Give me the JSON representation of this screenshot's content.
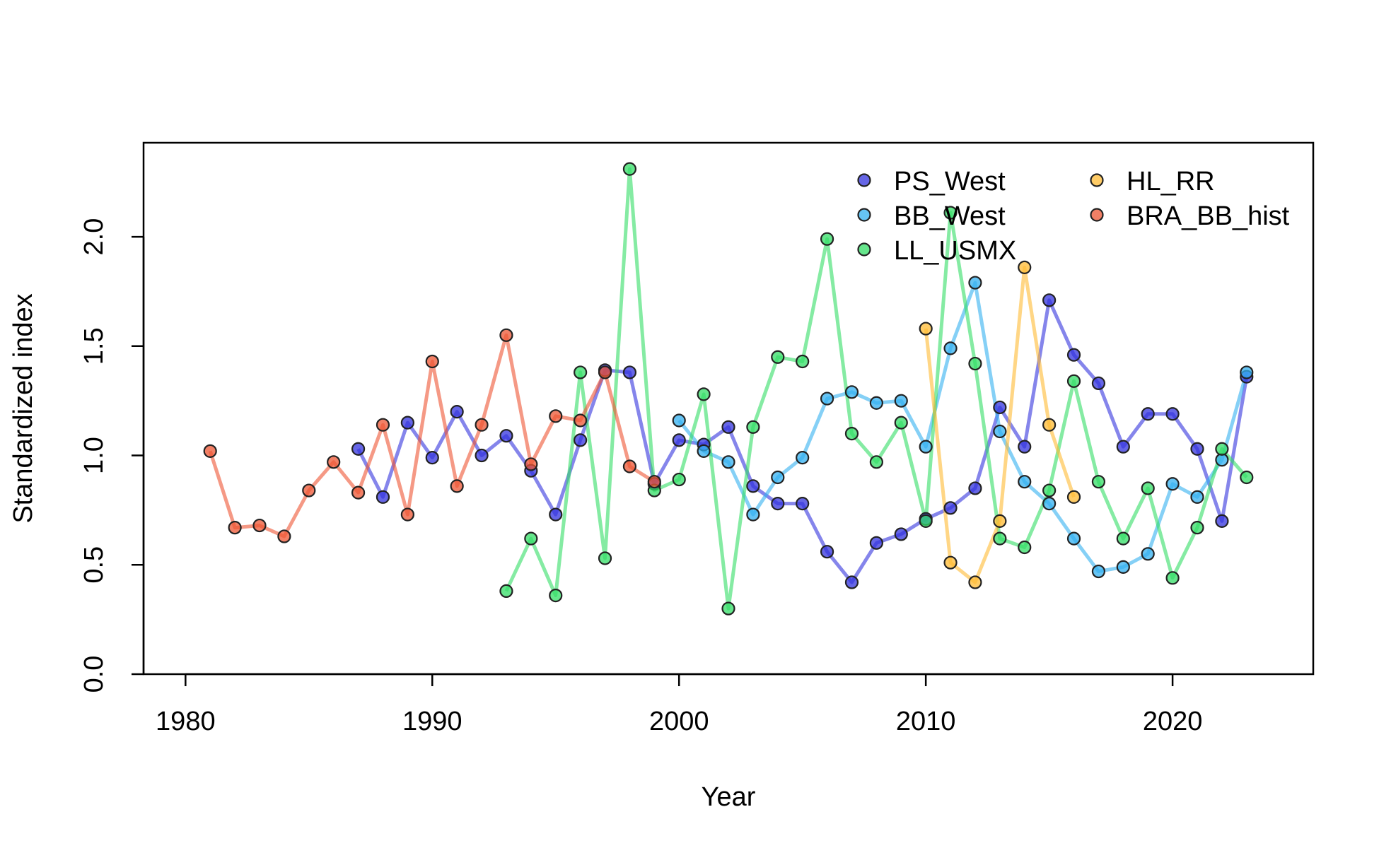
{
  "chart_data": {
    "type": "line",
    "title": "",
    "xlabel": "Year",
    "ylabel": "Standardized index",
    "xlim": [
      1978.3,
      2025.7
    ],
    "ylim": [
      0,
      2.43
    ],
    "xticks": [
      1980,
      1990,
      2000,
      2010,
      2020
    ],
    "xtick_labels": [
      "1980",
      "1990",
      "2000",
      "2010",
      "2020"
    ],
    "yticks": [
      0,
      0.5,
      1,
      1.5,
      2
    ],
    "ytick_labels": [
      "0.0",
      "0.5",
      "1.0",
      "1.5",
      "2.0"
    ],
    "grid": false,
    "legend_position": "top-right",
    "legend_columns": 2,
    "series": [
      {
        "name": "PS_West",
        "color": "#3333dd",
        "x": [
          1987,
          1988,
          1989,
          1990,
          1991,
          1992,
          1993,
          1994,
          1995,
          1996,
          1997,
          1998,
          1999,
          2000,
          2001,
          2002,
          2003,
          2004,
          2005,
          2006,
          2007,
          2008,
          2009,
          2010,
          2011,
          2012,
          2013,
          2014,
          2015,
          2016,
          2017,
          2018,
          2019,
          2020,
          2021,
          2022,
          2023
        ],
        "values": [
          1.03,
          0.81,
          1.15,
          0.99,
          1.2,
          1.0,
          1.09,
          0.93,
          0.73,
          1.07,
          1.39,
          1.38,
          0.87,
          1.07,
          1.05,
          1.13,
          0.86,
          0.78,
          0.78,
          0.56,
          0.42,
          0.6,
          0.64,
          0.71,
          0.76,
          0.85,
          1.22,
          1.04,
          1.71,
          1.46,
          1.33,
          1.04,
          1.19,
          1.19,
          1.03,
          0.7,
          1.36
        ]
      },
      {
        "name": "BB_West",
        "color": "#33b0f0",
        "x": [
          2000,
          2001,
          2002,
          2003,
          2004,
          2005,
          2006,
          2007,
          2008,
          2009,
          2010,
          2011,
          2012,
          2013,
          2014,
          2015,
          2016,
          2017,
          2018,
          2019,
          2020,
          2021,
          2022,
          2023
        ],
        "values": [
          1.16,
          1.02,
          0.97,
          0.73,
          0.9,
          0.99,
          1.26,
          1.29,
          1.24,
          1.25,
          1.04,
          1.49,
          1.79,
          1.11,
          0.88,
          0.78,
          0.62,
          0.47,
          0.49,
          0.55,
          0.87,
          0.81,
          0.98,
          1.38
        ]
      },
      {
        "name": "LL_USMX",
        "color": "#33dd66",
        "x": [
          1993,
          1994,
          1995,
          1996,
          1997,
          1998,
          1999,
          2000,
          2001,
          2002,
          2003,
          2004,
          2005,
          2006,
          2007,
          2008,
          2009,
          2010,
          2011,
          2012,
          2013,
          2014,
          2015,
          2016,
          2017,
          2018,
          2019,
          2020,
          2021,
          2022,
          2023
        ],
        "values": [
          0.38,
          0.62,
          0.36,
          1.38,
          0.53,
          2.31,
          0.84,
          0.89,
          1.28,
          0.3,
          1.13,
          1.45,
          1.43,
          1.99,
          1.1,
          0.97,
          1.15,
          0.7,
          2.11,
          1.42,
          0.62,
          0.58,
          0.84,
          1.34,
          0.88,
          0.62,
          0.85,
          0.44,
          0.67,
          1.03,
          0.9
        ]
      },
      {
        "name": "HL_RR",
        "color": "#ffbb33",
        "x": [
          2010,
          2011,
          2012,
          2013,
          2014,
          2015,
          2016
        ],
        "values": [
          1.58,
          0.51,
          0.42,
          0.7,
          1.86,
          1.14,
          0.81
        ]
      },
      {
        "name": "BRA_BB_hist",
        "color": "#ee5533",
        "x": [
          1981,
          1982,
          1983,
          1984,
          1985,
          1986,
          1987,
          1988,
          1989,
          1990,
          1991,
          1992,
          1993,
          1994,
          1995,
          1996,
          1997,
          1998,
          1999
        ],
        "values": [
          1.02,
          0.67,
          0.68,
          0.63,
          0.84,
          0.97,
          0.83,
          1.14,
          0.73,
          1.43,
          0.86,
          1.14,
          1.55,
          0.96,
          1.18,
          1.16,
          1.38,
          0.95,
          0.88
        ]
      }
    ]
  }
}
